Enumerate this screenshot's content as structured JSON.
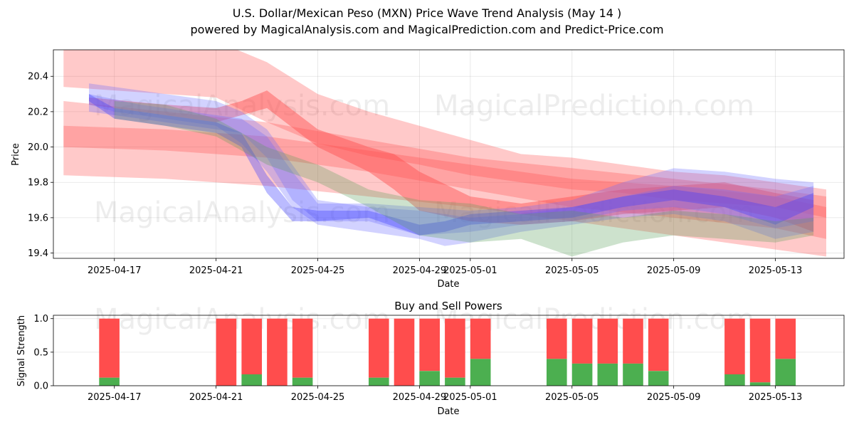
{
  "chart_data": [
    {
      "type": "area",
      "title": "U.S. Dollar/Mexican Peso (MXN) Price Wave Trend Analysis (May 14 )",
      "subtitle": "powered by MagicalAnalysis.com and MagicalPrediction.com and Predict-Price.com",
      "xlabel": "Date",
      "ylabel": "Price",
      "x_ticks": [
        "2025-04-17",
        "2025-04-21",
        "2025-04-25",
        "2025-04-29",
        "2025-05-01",
        "2025-05-05",
        "2025-05-09",
        "2025-05-13"
      ],
      "x_tick_day_index": [
        2,
        6,
        10,
        14,
        16,
        20,
        24,
        28
      ],
      "x_range_day_index": [
        -0.4,
        30.7
      ],
      "ylim": [
        19.37,
        20.55
      ],
      "y_ticks": [
        19.4,
        19.6,
        19.8,
        20.0,
        20.2,
        20.4
      ],
      "grid": true,
      "watermark": [
        "MagicalAnalysis.com",
        "MagicalPrediction.com"
      ],
      "series": [
        {
          "name": "red-band-upper",
          "color": "#ff4d4d",
          "x": [
            0,
            6,
            8,
            10,
            12,
            14,
            16,
            18,
            20,
            22,
            24,
            26,
            28,
            30
          ],
          "upper": [
            20.58,
            20.6,
            20.48,
            20.3,
            20.2,
            20.12,
            20.04,
            19.96,
            19.94,
            19.9,
            19.86,
            19.84,
            19.8,
            19.76
          ],
          "lower": [
            20.34,
            20.28,
            20.14,
            20.02,
            19.95,
            19.9,
            19.84,
            19.8,
            19.76,
            19.74,
            19.7,
            19.68,
            19.66,
            19.6
          ]
        },
        {
          "name": "red-band-mid",
          "color": "#ff4d4d",
          "x": [
            0,
            4,
            8,
            12,
            16,
            20,
            24,
            28,
            30
          ],
          "upper": [
            20.26,
            20.2,
            20.14,
            20.04,
            19.94,
            19.88,
            19.82,
            19.76,
            19.72
          ],
          "lower": [
            19.84,
            19.82,
            19.78,
            19.72,
            19.66,
            19.58,
            19.5,
            19.42,
            19.38
          ]
        },
        {
          "name": "red-band-lower",
          "color": "#ff4d4d",
          "x": [
            0,
            4,
            8,
            12,
            16,
            20,
            24,
            28,
            30
          ],
          "upper": [
            20.12,
            20.1,
            20.06,
            19.98,
            19.9,
            19.82,
            19.78,
            19.72,
            19.66
          ],
          "lower": [
            20.0,
            19.98,
            19.94,
            19.86,
            19.76,
            19.66,
            19.6,
            19.54,
            19.48
          ]
        },
        {
          "name": "red-wave",
          "color": "#ff4d4d",
          "x": [
            1,
            4,
            6,
            7,
            8,
            10,
            12,
            13,
            14,
            16,
            18,
            20,
            22,
            24,
            26,
            28,
            29.5
          ],
          "upper": [
            20.28,
            20.24,
            20.22,
            20.26,
            20.32,
            20.1,
            20.0,
            19.96,
            19.86,
            19.72,
            19.68,
            19.72,
            19.76,
            19.78,
            19.8,
            19.74,
            19.7
          ],
          "lower": [
            20.24,
            20.18,
            20.14,
            20.18,
            20.22,
            20.0,
            19.86,
            19.76,
            19.64,
            19.58,
            19.56,
            19.58,
            19.62,
            19.64,
            19.66,
            19.6,
            19.52
          ]
        },
        {
          "name": "blue-band-1",
          "color": "#6a6aff",
          "x": [
            1,
            2,
            4,
            6,
            7,
            8,
            9,
            10,
            12,
            14,
            15,
            16,
            18,
            20,
            22,
            24,
            26,
            28,
            29.5
          ],
          "upper": [
            20.36,
            20.34,
            20.3,
            20.26,
            20.2,
            20.1,
            19.9,
            19.7,
            19.66,
            19.64,
            19.62,
            19.6,
            19.62,
            19.66,
            19.72,
            19.78,
            19.76,
            19.72,
            19.78
          ],
          "lower": [
            20.24,
            20.2,
            20.16,
            20.12,
            20.02,
            19.86,
            19.66,
            19.56,
            19.52,
            19.48,
            19.44,
            19.46,
            19.52,
            19.56,
            19.6,
            19.62,
            19.58,
            19.48,
            19.52
          ]
        },
        {
          "name": "blue-band-2",
          "color": "#6a6aff",
          "x": [
            1,
            3,
            5,
            7,
            8,
            9,
            10,
            12,
            14,
            16,
            18,
            20,
            22,
            24,
            26,
            28,
            29.5
          ],
          "upper": [
            20.3,
            20.24,
            20.2,
            20.16,
            20.06,
            19.86,
            19.68,
            19.68,
            19.66,
            19.64,
            19.66,
            19.7,
            19.8,
            19.88,
            19.86,
            19.82,
            19.8
          ],
          "lower": [
            20.2,
            20.16,
            20.12,
            20.08,
            19.94,
            19.7,
            19.58,
            19.58,
            19.5,
            19.52,
            19.56,
            19.58,
            19.64,
            19.66,
            19.62,
            19.54,
            19.58
          ]
        },
        {
          "name": "blue-wave",
          "color": "#3c3cff",
          "x": [
            1,
            2,
            4,
            6,
            7,
            8,
            9,
            10,
            12,
            14,
            15,
            16,
            18,
            20,
            22,
            24,
            26,
            28,
            29.5
          ],
          "upper": [
            20.3,
            20.22,
            20.18,
            20.14,
            20.08,
            19.84,
            19.66,
            19.64,
            19.64,
            19.56,
            19.58,
            19.62,
            19.64,
            19.66,
            19.72,
            19.76,
            19.72,
            19.66,
            19.74
          ],
          "lower": [
            20.26,
            20.16,
            20.12,
            20.08,
            20.0,
            19.74,
            19.58,
            19.58,
            19.6,
            19.5,
            19.52,
            19.56,
            19.58,
            19.6,
            19.66,
            19.7,
            19.66,
            19.56,
            19.66
          ]
        },
        {
          "name": "green-band",
          "color": "#5aa05a",
          "x": [
            2,
            4,
            6,
            8,
            10,
            12,
            14,
            16,
            18,
            20,
            22,
            24,
            26,
            28,
            29.5
          ],
          "upper": [
            20.26,
            20.24,
            20.16,
            20.0,
            19.9,
            19.76,
            19.7,
            19.68,
            19.62,
            19.64,
            19.6,
            19.64,
            19.62,
            19.58,
            19.6
          ],
          "lower": [
            20.16,
            20.12,
            20.06,
            19.9,
            19.8,
            19.66,
            19.5,
            19.46,
            19.48,
            19.38,
            19.46,
            19.5,
            19.48,
            19.46,
            19.5
          ]
        }
      ]
    },
    {
      "type": "bar",
      "title": "Buy and Sell Powers",
      "xlabel": "Date",
      "ylabel": "Signal Strength",
      "ylim": [
        0,
        1.05
      ],
      "y_ticks": [
        0.0,
        0.5,
        1.0
      ],
      "y_tick_labels": [
        "0.0",
        "0.5",
        "1.0"
      ],
      "x_ticks": [
        "2025-04-17",
        "2025-04-21",
        "2025-04-25",
        "2025-04-29",
        "2025-05-01",
        "2025-05-05",
        "2025-05-09",
        "2025-05-13"
      ],
      "x_tick_day_index": [
        2,
        6,
        10,
        14,
        16,
        20,
        24,
        28
      ],
      "x_range_day_index": [
        -0.4,
        30.7
      ],
      "grid": true,
      "series": [
        {
          "name": "Buy",
          "color": "#4caf50"
        },
        {
          "name": "Sell",
          "color": "#ff4d4d"
        }
      ],
      "bars": [
        {
          "day_index": 1.8,
          "buy": 0.12,
          "sell": 0.88
        },
        {
          "day_index": 6.4,
          "buy": 0.0,
          "sell": 1.0
        },
        {
          "day_index": 7.4,
          "buy": 0.17,
          "sell": 0.83
        },
        {
          "day_index": 8.4,
          "buy": 0.0,
          "sell": 1.0
        },
        {
          "day_index": 9.4,
          "buy": 0.12,
          "sell": 0.88
        },
        {
          "day_index": 12.4,
          "buy": 0.12,
          "sell": 0.88
        },
        {
          "day_index": 13.4,
          "buy": 0.0,
          "sell": 1.0
        },
        {
          "day_index": 14.4,
          "buy": 0.22,
          "sell": 0.78
        },
        {
          "day_index": 15.4,
          "buy": 0.12,
          "sell": 0.88
        },
        {
          "day_index": 16.4,
          "buy": 0.4,
          "sell": 0.6
        },
        {
          "day_index": 19.4,
          "buy": 0.4,
          "sell": 0.6
        },
        {
          "day_index": 20.4,
          "buy": 0.33,
          "sell": 0.67
        },
        {
          "day_index": 21.4,
          "buy": 0.33,
          "sell": 0.67
        },
        {
          "day_index": 22.4,
          "buy": 0.33,
          "sell": 0.67
        },
        {
          "day_index": 23.4,
          "buy": 0.22,
          "sell": 0.78
        },
        {
          "day_index": 26.4,
          "buy": 0.17,
          "sell": 0.83
        },
        {
          "day_index": 27.4,
          "buy": 0.05,
          "sell": 0.95
        },
        {
          "day_index": 28.4,
          "buy": 0.4,
          "sell": 0.6
        }
      ]
    }
  ]
}
